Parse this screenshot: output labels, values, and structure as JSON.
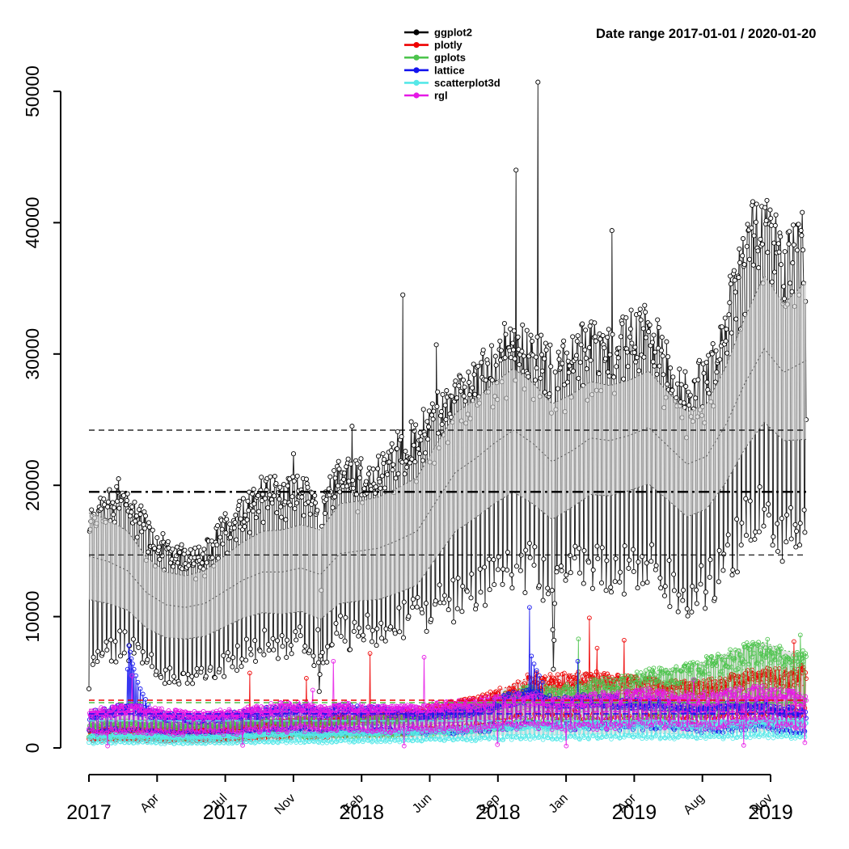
{
  "header": {
    "date_range_label": "Date range  2017-01-01 / 2020-01-20"
  },
  "legend": {
    "items": [
      {
        "label": "ggplot2",
        "color": "#000000"
      },
      {
        "label": "plotly",
        "color": "#EE0000"
      },
      {
        "label": "gplots",
        "color": "#4DC44D"
      },
      {
        "label": "lattice",
        "color": "#1414EE"
      },
      {
        "label": "scatterplot3d",
        "color": "#55E8E8"
      },
      {
        "label": "rgl",
        "color": "#E619E6"
      }
    ]
  },
  "chart_data": {
    "type": "line",
    "title": "Date range  2017-01-01 / 2020-01-20",
    "xlabel": "",
    "ylabel": "",
    "date_start": "2017-01-01",
    "date_end": "2020-01-20",
    "total_days": 1115,
    "ylim": [
      0,
      50000
    ],
    "y_axis": {
      "ticks": [
        0,
        10000,
        20000,
        30000,
        40000,
        50000
      ],
      "tick_labels": [
        "0",
        "10000",
        "20000",
        "30000",
        "40000",
        "50000"
      ]
    },
    "x_axis": {
      "tick_count": 11,
      "month_labels": [
        "",
        "Apr",
        "Jul",
        "Nov",
        "Feb",
        "Jun",
        "Sep",
        "Jan",
        "Apr",
        "Aug",
        "Nov"
      ],
      "year_labels": [
        {
          "label": "2017",
          "tick": 0
        },
        {
          "label": "2017",
          "tick": 2
        },
        {
          "label": "2018",
          "tick": 4
        },
        {
          "label": "2018",
          "tick": 6
        },
        {
          "label": "2019",
          "tick": 8
        },
        {
          "label": "2019",
          "tick": 10
        }
      ]
    },
    "anchor_days": [
      0,
      30,
      60,
      90,
      120,
      150,
      180,
      210,
      240,
      270,
      300,
      330,
      360,
      390,
      420,
      450,
      480,
      510,
      540,
      570,
      600,
      630,
      660,
      690,
      720,
      750,
      780,
      810,
      840,
      870,
      900,
      930,
      960,
      990,
      1020,
      1050,
      1080,
      1115
    ],
    "series": [
      {
        "name": "ggplot2",
        "color": "#000000",
        "kind": "hilo",
        "weekday_high": [
          18500,
          19700,
          20700,
          17200,
          16200,
          15200,
          15500,
          17500,
          18700,
          20700,
          20200,
          20700,
          19500,
          22500,
          21700,
          22000,
          23700,
          24700,
          26500,
          28700,
          29200,
          31200,
          33200,
          31700,
          30200,
          31200,
          32200,
          31700,
          32700,
          33700,
          30200,
          28700,
          29700,
          34200,
          40200,
          43200,
          38200,
          40500
        ],
        "weekend_low": [
          6000,
          7800,
          8200,
          6500,
          5900,
          5700,
          5900,
          6500,
          7300,
          8100,
          8300,
          8600,
          6800,
          9000,
          9100,
          9300,
          9900,
          10500,
          11100,
          11600,
          12100,
          13600,
          14100,
          13900,
          12300,
          14100,
          14600,
          14100,
          14100,
          14100,
          13100,
          12100,
          12600,
          15100,
          17100,
          19100,
          17100,
          16100
        ],
        "band_center": [
          14600,
          14200,
          13500,
          11800,
          10900,
          10700,
          11000,
          11900,
          12800,
          13400,
          13400,
          13700,
          13200,
          14800,
          15000,
          15200,
          15800,
          16500,
          18800,
          21000,
          22000,
          23200,
          24200,
          23200,
          21800,
          22600,
          23600,
          23400,
          23800,
          24400,
          23000,
          21600,
          22200,
          24600,
          27800,
          30400,
          28600,
          29500
        ],
        "band_half": [
          3300,
          3200,
          3000,
          2700,
          2500,
          2400,
          2500,
          2700,
          2900,
          3100,
          3200,
          3300,
          3400,
          3800,
          3800,
          3900,
          4000,
          4100,
          4300,
          4500,
          4500,
          4600,
          4700,
          4600,
          4400,
          4300,
          4300,
          4200,
          4200,
          4300,
          4100,
          4000,
          4000,
          4400,
          5000,
          5600,
          5200,
          6000
        ],
        "spikes": {
          "0": 4500,
          "318": 22400,
          "356": 9000,
          "357": 6500,
          "358": 4300,
          "359": 5600,
          "360": 7000,
          "361": 12000,
          "409": 24500,
          "488": 34500,
          "540": 30700,
          "664": 44000,
          "698": 50700,
          "720": 12000,
          "721": 9000,
          "722": 6000,
          "723": 8200,
          "724": 11000,
          "813": 39400,
          "1098": 17000,
          "1099": 15300,
          "1100": 16500,
          "1114": 34000,
          "1115": 25000
        }
      },
      {
        "name": "plotly",
        "color": "#EE0000",
        "kind": "mid",
        "mid": [
          1100,
          1150,
          1200,
          1150,
          1100,
          1100,
          1150,
          1200,
          1300,
          1500,
          1600,
          1700,
          1600,
          1900,
          1900,
          2000,
          2100,
          2300,
          2500,
          2700,
          2900,
          3300,
          3800,
          4300,
          4200,
          4400,
          4500,
          4200,
          4100,
          4000,
          3900,
          3800,
          3900,
          4100,
          4400,
          4600,
          4500,
          4800
        ],
        "spikes": {
          "250": 5700,
          "338": 5300,
          "437": 7200,
          "778": 9900,
          "790": 7600,
          "832": 8200,
          "1096": 8100
        }
      },
      {
        "name": "gplots",
        "color": "#4DC44D",
        "kind": "mid",
        "mid": [
          1500,
          1500,
          1550,
          1500,
          1450,
          1400,
          1450,
          1500,
          1550,
          1650,
          1700,
          1750,
          1650,
          1800,
          1800,
          1850,
          1900,
          2000,
          2100,
          2300,
          2500,
          2900,
          3300,
          3600,
          3500,
          3700,
          3900,
          4000,
          4200,
          4500,
          4700,
          4800,
          5200,
          5600,
          6000,
          6300,
          5800,
          5600
        ],
        "spikes": {
          "761": 8300,
          "1040": 7800,
          "1106": 8600
        }
      },
      {
        "name": "lattice",
        "color": "#1414EE",
        "kind": "mid",
        "mid": [
          2100,
          2300,
          2600,
          2300,
          2000,
          1900,
          1900,
          2000,
          2100,
          2300,
          2400,
          2500,
          2200,
          2500,
          2400,
          2400,
          2300,
          2200,
          2200,
          2300,
          2400,
          2800,
          3200,
          3400,
          3000,
          3000,
          3100,
          3000,
          2900,
          2900,
          2800,
          2600,
          2500,
          2600,
          2700,
          2700,
          2400,
          2200
        ],
        "spikes": {
          "60": 6000,
          "62": 7800,
          "64": 7300,
          "66": 6800,
          "68": 6400,
          "70": 6000,
          "73": 5500,
          "76": 5000,
          "80": 4500,
          "84": 4100,
          "88": 3700,
          "92": 3300,
          "685": 10700,
          "688": 7000,
          "692": 6400,
          "696": 5900,
          "700": 5500,
          "705": 5000,
          "760": 6600
        }
      },
      {
        "name": "scatterplot3d",
        "color": "#55E8E8",
        "kind": "mid",
        "mid": [
          700,
          750,
          800,
          750,
          700,
          680,
          700,
          720,
          760,
          820,
          860,
          900,
          820,
          950,
          950,
          980,
          1000,
          1050,
          1100,
          1150,
          1200,
          1300,
          1400,
          1450,
          1350,
          1400,
          1450,
          1450,
          1500,
          1550,
          1500,
          1450,
          1500,
          1550,
          1650,
          1700,
          1600,
          1600
        ],
        "spikes": {}
      },
      {
        "name": "rgl",
        "color": "#E619E6",
        "kind": "mid",
        "mid": [
          2300,
          2400,
          2500,
          2400,
          2200,
          2100,
          2100,
          2200,
          2300,
          2500,
          2600,
          2700,
          2400,
          2600,
          2500,
          2500,
          2400,
          2500,
          2600,
          2700,
          2800,
          3000,
          3100,
          3200,
          2900,
          3000,
          3100,
          3200,
          3300,
          3400,
          3300,
          3200,
          3200,
          3300,
          3500,
          3600,
          3300,
          3200
        ],
        "spikes": {
          "29": 150,
          "67": 5500,
          "239": 200,
          "348": 4400,
          "380": 6600,
          "490": 150,
          "521": 6900,
          "635": 250,
          "742": 150,
          "940": 5200,
          "1018": 200,
          "1113": 400
        }
      }
    ],
    "ref_lines": [
      {
        "series": "ggplot2",
        "value": 24200,
        "color": "#000000",
        "style": "dashed",
        "width": 1.2
      },
      {
        "series": "ggplot2",
        "value": 19500,
        "color": "#000000",
        "style": "dashdot",
        "width": 2.4
      },
      {
        "series": "ggplot2",
        "value": 14700,
        "color": "#000000",
        "style": "dashed",
        "width": 1.2
      },
      {
        "series": "plotly",
        "value": 3630,
        "color": "#EE0000",
        "style": "dashed",
        "width": 1.5
      },
      {
        "series": "gplots",
        "value": 3450,
        "color": "#4DC44D",
        "style": "dashed",
        "width": 1.5
      },
      {
        "series": "rgl",
        "value": 2770,
        "color": "#E619E6",
        "style": "dashed",
        "width": 1.5
      },
      {
        "series": "lattice",
        "value": 2590,
        "color": "#1414EE",
        "style": "dashed",
        "width": 1.5
      },
      {
        "series": "scatterplot3d",
        "value": 2060,
        "color": "#55E8E8",
        "style": "dashed",
        "width": 1.5
      }
    ]
  }
}
